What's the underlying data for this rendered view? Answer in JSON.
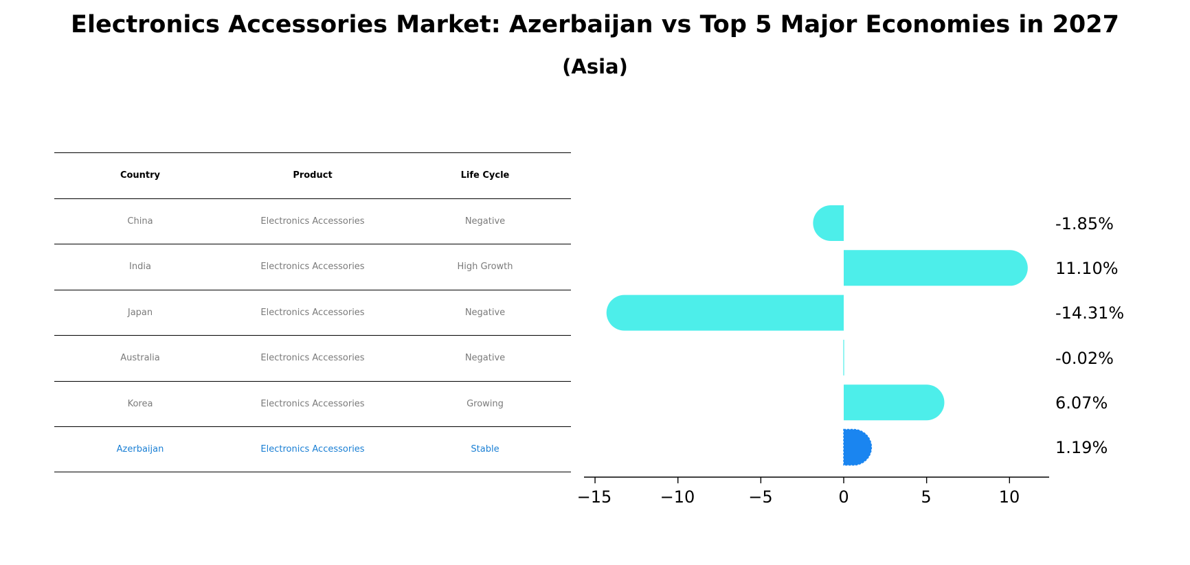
{
  "header": {
    "title": "Electronics Accessories Market: Azerbaijan vs Top 5 Major Economies in 2027",
    "subtitle": "(Asia)"
  },
  "table": {
    "columns": [
      "Country",
      "Product",
      "Life Cycle"
    ],
    "rows": [
      {
        "country": "China",
        "product": "Electronics Accessories",
        "life_cycle": "Negative"
      },
      {
        "country": "India",
        "product": "Electronics Accessories",
        "life_cycle": "High Growth"
      },
      {
        "country": "Japan",
        "product": "Electronics Accessories",
        "life_cycle": "Negative"
      },
      {
        "country": "Australia",
        "product": "Electronics Accessories",
        "life_cycle": "Negative"
      },
      {
        "country": "Korea",
        "product": "Electronics Accessories",
        "life_cycle": "Growing"
      },
      {
        "country": "Azerbaijan",
        "product": "Electronics Accessories",
        "life_cycle": "Stable"
      }
    ],
    "highlight_color": "#1a7fd4",
    "text_color": "#7a7a7a"
  },
  "chart_data": {
    "type": "bar",
    "orientation": "horizontal",
    "title": "Electronics Accessories Market: Azerbaijan vs Top 5 Major Economies in 2027",
    "subtitle": "(Asia)",
    "categories": [
      "China",
      "India",
      "Japan",
      "Australia",
      "Korea",
      "Azerbaijan"
    ],
    "values": [
      -1.85,
      11.1,
      -14.31,
      -0.02,
      6.07,
      1.19
    ],
    "value_labels": [
      "-1.85%",
      "11.10%",
      "-14.31%",
      "-0.02%",
      "6.07%",
      "1.19%"
    ],
    "xlabel": "",
    "ylabel": "",
    "xticks": [
      -15,
      -10,
      -5,
      0,
      5,
      10
    ],
    "xtick_labels": [
      "−15",
      "−10",
      "−5",
      "0",
      "5",
      "10"
    ],
    "xlim": [
      -15.6,
      12.5
    ],
    "grid": false,
    "legend": null,
    "colors": {
      "default": "#4deeea",
      "highlight": "#1a85f0"
    },
    "highlight_category": "Azerbaijan"
  }
}
